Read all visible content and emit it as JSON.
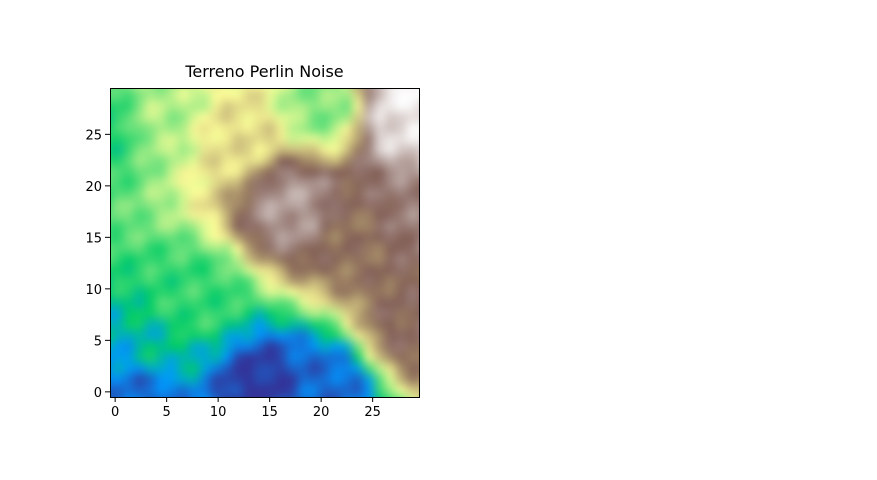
{
  "chart_data": {
    "type": "heatmap",
    "title": "Terreno Perlin Noise",
    "xlabel": "",
    "ylabel": "",
    "xlim": [
      -0.5,
      29.5
    ],
    "ylim": [
      29.5,
      -0.5
    ],
    "x_ticks": [
      0,
      5,
      10,
      15,
      20,
      25
    ],
    "y_ticks": [
      0,
      5,
      10,
      15,
      20,
      25
    ],
    "colormap": "terrain",
    "grid": false,
    "rows": 30,
    "cols": 30,
    "values_description_points": [
      {
        "row": 1,
        "col": 28,
        "value": 1.0
      },
      {
        "row": 3,
        "col": 27,
        "value": 0.95
      },
      {
        "row": 11,
        "col": 17,
        "value": 0.85
      },
      {
        "row": 12,
        "col": 28,
        "value": 0.8
      },
      {
        "row": 22,
        "col": 28,
        "value": 0.75
      },
      {
        "row": 14,
        "col": 23,
        "value": 0.72
      },
      {
        "row": 5,
        "col": 12,
        "value": 0.55
      },
      {
        "row": 3,
        "col": 5,
        "value": 0.42
      },
      {
        "row": 2,
        "col": 20,
        "value": 0.38
      },
      {
        "row": 4,
        "col": 0,
        "value": 0.28
      },
      {
        "row": 20,
        "col": 8,
        "value": 0.3
      },
      {
        "row": 25,
        "col": 5,
        "value": 0.22
      },
      {
        "row": 28,
        "col": 4,
        "value": 0.08
      },
      {
        "row": 28,
        "col": 14,
        "value": 0.0
      },
      {
        "row": 28,
        "col": 20,
        "value": 0.08
      }
    ]
  }
}
